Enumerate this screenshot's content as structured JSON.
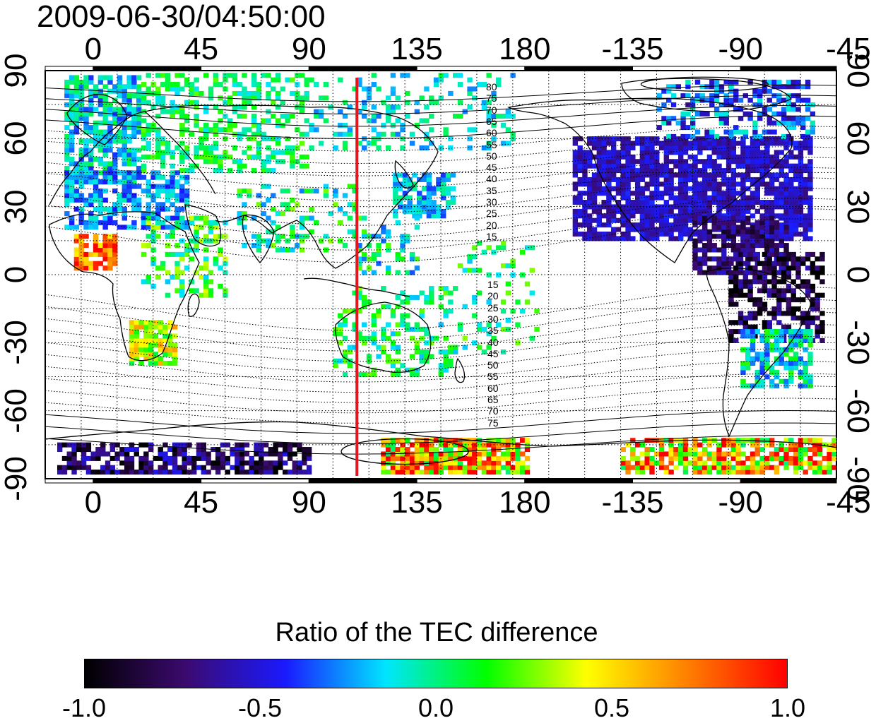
{
  "timestamp": "2009-06-30/04:50:00",
  "map": {
    "projection": "equirectangular",
    "lon_range": [
      -20,
      310
    ],
    "lat_range": [
      -90,
      90
    ],
    "lon_ticks": [
      {
        "value": 0,
        "label": "0"
      },
      {
        "value": 45,
        "label": "45"
      },
      {
        "value": 90,
        "label": "90"
      },
      {
        "value": 135,
        "label": "135"
      },
      {
        "value": 180,
        "label": "180"
      },
      {
        "value": 225,
        "label": "-135"
      },
      {
        "value": 270,
        "label": "-90"
      },
      {
        "value": 315,
        "label": "-45"
      }
    ],
    "lat_ticks": [
      {
        "value": 90,
        "label": "90"
      },
      {
        "value": 60,
        "label": "60"
      },
      {
        "value": 30,
        "label": "30"
      },
      {
        "value": 0,
        "label": "0"
      },
      {
        "value": -30,
        "label": "-30"
      },
      {
        "value": -60,
        "label": "-60"
      },
      {
        "value": -90,
        "label": "-90"
      }
    ],
    "red_line_lon": 110,
    "magnetic_latitude_labels": {
      "north": [
        "80",
        "75",
        "70",
        "65",
        "60",
        "55",
        "50",
        "45",
        "40",
        "35",
        "30",
        "25",
        "20",
        "15"
      ],
      "south": [
        "15",
        "20",
        "25",
        "30",
        "35",
        "40",
        "45",
        "50",
        "55",
        "60",
        "65",
        "70",
        "75"
      ]
    },
    "colors": {
      "coastline": "#000000",
      "red_line": "#e8141c",
      "grid": "#000000"
    }
  },
  "colorbar": {
    "title": "Ratio of the TEC difference",
    "min": -1.0,
    "max": 1.0,
    "tick_labels": [
      "-1.0",
      "-0.5",
      "0.0",
      "0.5",
      "1.0"
    ],
    "colormap": [
      "#000000",
      "#3b0a6e",
      "#1a1aff",
      "#00e5ff",
      "#00ff00",
      "#ffff00",
      "#ff8000",
      "#ff0000"
    ]
  }
}
